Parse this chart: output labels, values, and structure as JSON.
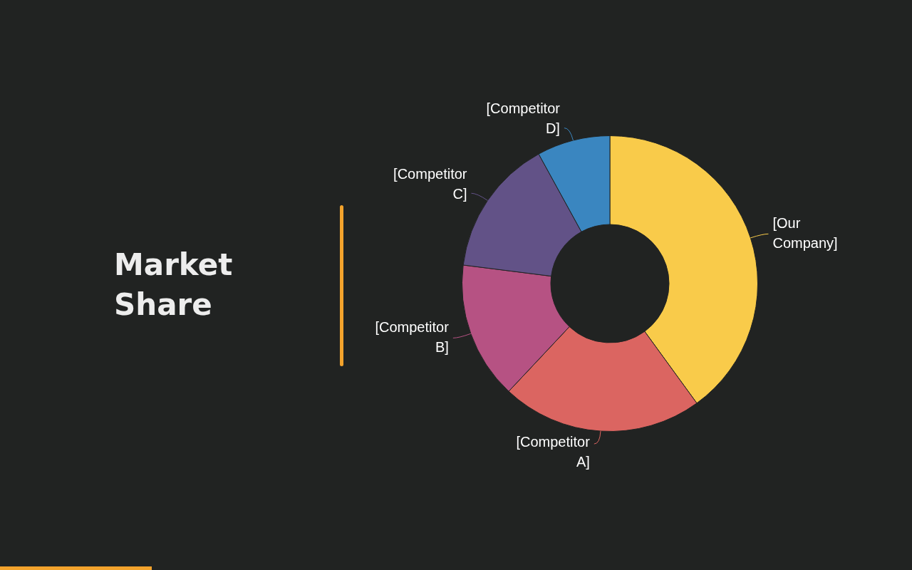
{
  "chart_data": {
    "type": "donut",
    "title": "Market Share",
    "categories": [
      "[Our Company]",
      "[Competitor A]",
      "[Competitor B]",
      "[Competitor C]",
      "[Competitor D]"
    ],
    "values": [
      40,
      22,
      15,
      15,
      8
    ],
    "colors": [
      "#f9cb4a",
      "#db6561",
      "#b65283",
      "#625287",
      "#3a86c0"
    ],
    "legend": false
  }
}
